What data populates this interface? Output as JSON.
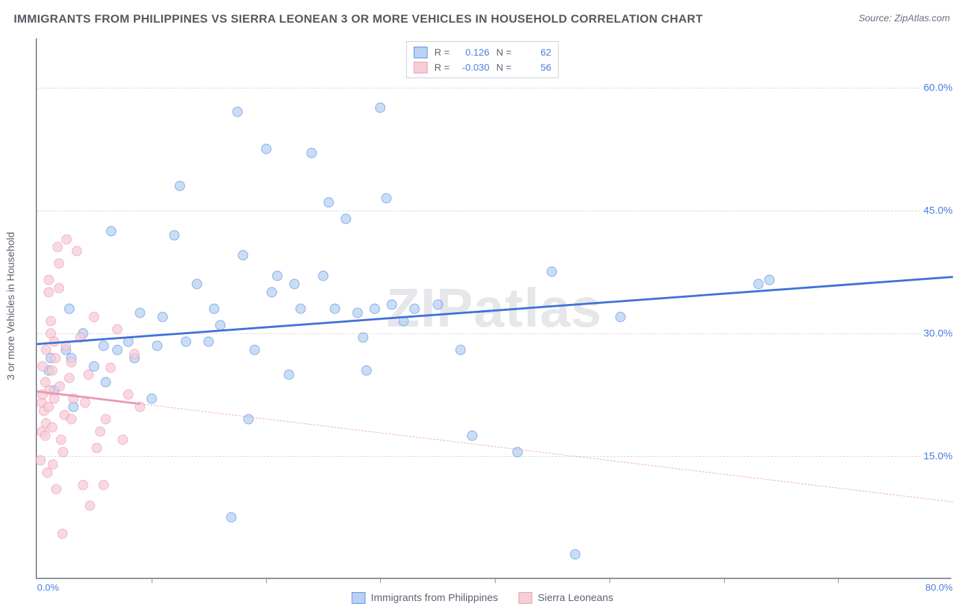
{
  "title": "IMMIGRANTS FROM PHILIPPINES VS SIERRA LEONEAN 3 OR MORE VEHICLES IN HOUSEHOLD CORRELATION CHART",
  "source": "Source: ZipAtlas.com",
  "ylabel": "3 or more Vehicles in Household",
  "watermark": "ZIPatlas",
  "chart": {
    "type": "scatter",
    "background": "#ffffff",
    "grid_color": "#d6d9de",
    "axis_color": "#8a8f99",
    "xlim": [
      0,
      80
    ],
    "ylim": [
      0,
      66
    ],
    "ytick_values": [
      15,
      30,
      45,
      60
    ],
    "ytick_labels": [
      "15.0%",
      "30.0%",
      "45.0%",
      "60.0%"
    ],
    "xtick_values": [
      10,
      20,
      30,
      40,
      50,
      60,
      70
    ],
    "xmin_label": "0.0%",
    "xmax_label": "80.0%",
    "label_color": "#4a7de0",
    "marker_radius": 7.5,
    "series": [
      {
        "name": "Immigrants from Philippines",
        "color_fill": "#b9d2f4",
        "color_stroke": "#5b8ede",
        "R": "0.126",
        "N": "62",
        "trend_color": "#3f72d8",
        "trend": {
          "x1": 0,
          "y1": 28.8,
          "x2": 80,
          "y2": 37.0,
          "solid_until_x": 80
        },
        "points": [
          [
            1.0,
            25.5
          ],
          [
            1.2,
            27.0
          ],
          [
            1.5,
            23.0
          ],
          [
            2.5,
            28.0
          ],
          [
            2.8,
            33.0
          ],
          [
            3.0,
            27.0
          ],
          [
            3.2,
            21.0
          ],
          [
            4.0,
            30.0
          ],
          [
            5.0,
            26.0
          ],
          [
            5.8,
            28.5
          ],
          [
            6.0,
            24.0
          ],
          [
            6.5,
            42.5
          ],
          [
            7.0,
            28.0
          ],
          [
            8.0,
            29.0
          ],
          [
            8.5,
            27.0
          ],
          [
            9.0,
            32.5
          ],
          [
            10.0,
            22.0
          ],
          [
            10.5,
            28.5
          ],
          [
            11.0,
            32.0
          ],
          [
            12.0,
            42.0
          ],
          [
            12.5,
            48.0
          ],
          [
            13.0,
            29.0
          ],
          [
            14.0,
            36.0
          ],
          [
            15.0,
            29.0
          ],
          [
            15.5,
            33.0
          ],
          [
            16.0,
            31.0
          ],
          [
            17.0,
            7.5
          ],
          [
            17.5,
            57.0
          ],
          [
            18.0,
            39.5
          ],
          [
            18.5,
            19.5
          ],
          [
            19.0,
            28.0
          ],
          [
            20.0,
            52.5
          ],
          [
            20.5,
            35.0
          ],
          [
            21.0,
            37.0
          ],
          [
            22.0,
            25.0
          ],
          [
            22.5,
            36.0
          ],
          [
            23.0,
            33.0
          ],
          [
            24.0,
            52.0
          ],
          [
            25.0,
            37.0
          ],
          [
            25.5,
            46.0
          ],
          [
            26.0,
            33.0
          ],
          [
            27.0,
            44.0
          ],
          [
            28.0,
            32.5
          ],
          [
            28.5,
            29.5
          ],
          [
            28.8,
            25.5
          ],
          [
            29.5,
            33.0
          ],
          [
            30.0,
            57.5
          ],
          [
            30.5,
            46.5
          ],
          [
            31.0,
            33.5
          ],
          [
            32.0,
            31.5
          ],
          [
            33.0,
            33.0
          ],
          [
            35.0,
            33.5
          ],
          [
            37.0,
            28.0
          ],
          [
            38.0,
            17.5
          ],
          [
            42.0,
            15.5
          ],
          [
            45.0,
            37.5
          ],
          [
            47.0,
            3.0
          ],
          [
            51.0,
            32.0
          ],
          [
            63.0,
            36.0
          ],
          [
            64.0,
            36.5
          ]
        ]
      },
      {
        "name": "Sierra Leoneans",
        "color_fill": "#f7cdd6",
        "color_stroke": "#ea9ab2",
        "R": "-0.030",
        "N": "56",
        "trend_color": "#ea9ab2",
        "trend": {
          "x1": 0,
          "y1": 23.0,
          "x2": 80,
          "y2": 9.5,
          "solid_until_x": 9
        },
        "points": [
          [
            0.3,
            14.5
          ],
          [
            0.4,
            18.0
          ],
          [
            0.4,
            21.5
          ],
          [
            0.5,
            22.5
          ],
          [
            0.5,
            26.0
          ],
          [
            0.6,
            20.5
          ],
          [
            0.7,
            17.5
          ],
          [
            0.7,
            24.0
          ],
          [
            0.8,
            19.0
          ],
          [
            0.8,
            28.0
          ],
          [
            0.9,
            13.0
          ],
          [
            1.0,
            21.0
          ],
          [
            1.0,
            35.0
          ],
          [
            1.0,
            36.5
          ],
          [
            1.1,
            23.0
          ],
          [
            1.2,
            30.0
          ],
          [
            1.2,
            31.5
          ],
          [
            1.3,
            18.5
          ],
          [
            1.3,
            25.5
          ],
          [
            1.4,
            14.0
          ],
          [
            1.5,
            22.0
          ],
          [
            1.5,
            29.0
          ],
          [
            1.6,
            27.0
          ],
          [
            1.7,
            11.0
          ],
          [
            1.8,
            40.5
          ],
          [
            1.9,
            38.5
          ],
          [
            1.9,
            35.5
          ],
          [
            2.0,
            23.5
          ],
          [
            2.1,
            17.0
          ],
          [
            2.2,
            5.5
          ],
          [
            2.3,
            15.5
          ],
          [
            2.4,
            20.0
          ],
          [
            2.5,
            28.5
          ],
          [
            2.6,
            41.5
          ],
          [
            2.8,
            24.5
          ],
          [
            3.0,
            19.5
          ],
          [
            3.0,
            26.5
          ],
          [
            3.2,
            22.0
          ],
          [
            3.5,
            40.0
          ],
          [
            3.8,
            29.5
          ],
          [
            4.0,
            11.5
          ],
          [
            4.2,
            21.5
          ],
          [
            4.5,
            25.0
          ],
          [
            4.6,
            9.0
          ],
          [
            5.0,
            32.0
          ],
          [
            5.2,
            16.0
          ],
          [
            5.5,
            18.0
          ],
          [
            5.8,
            11.5
          ],
          [
            6.0,
            19.5
          ],
          [
            6.4,
            25.8
          ],
          [
            7.0,
            30.5
          ],
          [
            7.5,
            17.0
          ],
          [
            8.0,
            22.5
          ],
          [
            8.5,
            27.5
          ],
          [
            9.0,
            21.0
          ]
        ]
      }
    ]
  },
  "legend_top": {
    "r_label": "R =",
    "n_label": "N ="
  }
}
